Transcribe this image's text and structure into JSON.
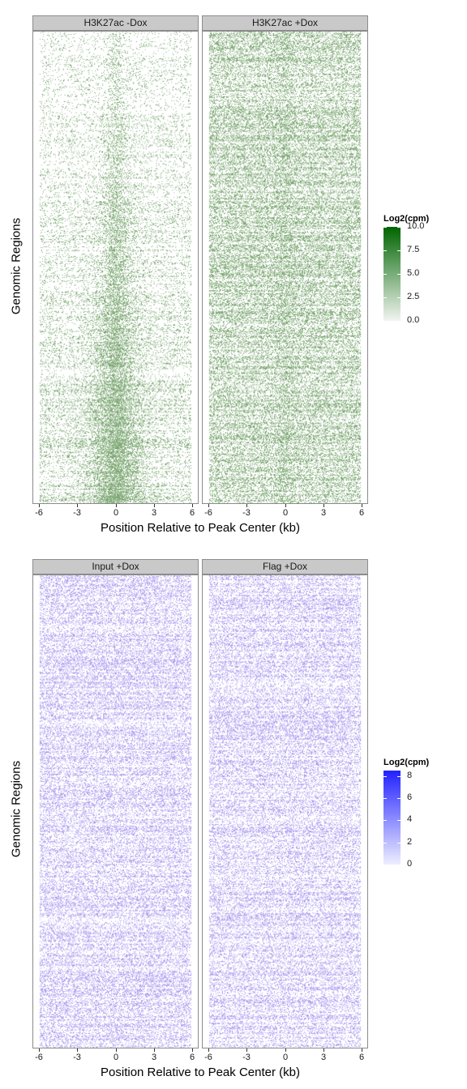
{
  "chart_data": [
    {
      "type": "heatmap",
      "xlabel": "Position Relative to Peak Center (kb)",
      "ylabel": "Genomic Regions",
      "xlim": [
        -6,
        6
      ],
      "x_ticks": [
        -6,
        -3,
        0,
        3,
        6
      ],
      "x_tick_labels": [
        "-6",
        "-3",
        "0",
        "3",
        "6"
      ],
      "panels": [
        {
          "label": "H3K27ac -Dox",
          "pattern": "center-enriched"
        },
        {
          "label": "H3K27ac +Dox",
          "pattern": "uniform-high"
        }
      ],
      "legend": {
        "title": "Log2(cpm)",
        "color_low": "#f2f5f1",
        "color_high": "#006400",
        "range": [
          0,
          10
        ],
        "breaks": [
          "0.0",
          "2.5",
          "5.0",
          "7.5",
          "10.0"
        ]
      },
      "mark_color": "#6e9e63"
    },
    {
      "type": "heatmap",
      "xlabel": "Position Relative to Peak Center (kb)",
      "ylabel": "Genomic Regions",
      "xlim": [
        -6,
        6
      ],
      "x_ticks": [
        -6,
        -3,
        0,
        3,
        6
      ],
      "x_tick_labels": [
        "-6",
        "-3",
        "0",
        "3",
        "6"
      ],
      "panels": [
        {
          "label": "Input +Dox",
          "pattern": "uniform"
        },
        {
          "label": "Flag +Dox",
          "pattern": "uniform"
        }
      ],
      "legend": {
        "title": "Log2(cpm)",
        "color_low": "#eeeeff",
        "color_high": "#2222ff",
        "range": [
          0,
          8.5
        ],
        "breaks": [
          "0",
          "2",
          "4",
          "6",
          "8"
        ]
      },
      "mark_color": "#a694ee"
    }
  ]
}
